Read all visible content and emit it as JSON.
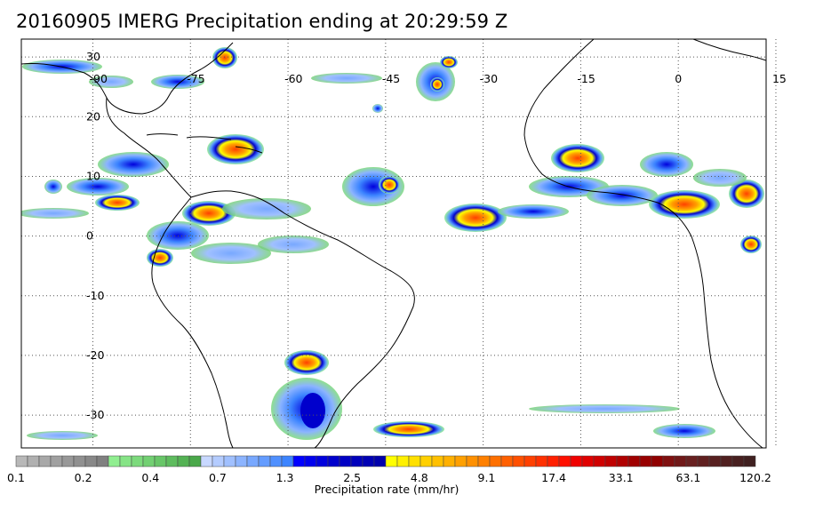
{
  "title": "20160905 IMERG Precipitation ending at 20:29:59 Z",
  "map": {
    "lon_range": [
      -101,
      13.5
    ],
    "lat_range": [
      -35.5,
      33
    ],
    "lon_ticks": [
      "-90",
      "-75",
      "-60",
      "-45",
      "-30",
      "-15",
      "0",
      "15"
    ],
    "lat_ticks": [
      "30",
      "20",
      "10",
      "0",
      "-10",
      "-20",
      "-30"
    ],
    "gridlines": "dotted",
    "coastlines": true
  },
  "colorbar": {
    "title": "Precipitation rate (mm/hr)",
    "tick_labels": [
      "0.1",
      "0.2",
      "0.4",
      "0.7",
      "1.3",
      "2.5",
      "4.8",
      "9.1",
      "17.4",
      "33.1",
      "63.1",
      "120.2"
    ],
    "colors": [
      "#b8b8b8",
      "#b0b0b0",
      "#a8a8a8",
      "#a0a0a0",
      "#989898",
      "#909090",
      "#888888",
      "#808080",
      "#90ee90",
      "#86e486",
      "#7cda7c",
      "#72d072",
      "#68c668",
      "#5ebc5e",
      "#54b254",
      "#4aa84a",
      "#c8d8ff",
      "#b4ccff",
      "#a0c0ff",
      "#8cb4ff",
      "#78a8ff",
      "#649cff",
      "#5090ff",
      "#3c84ff",
      "#0000ff",
      "#0000ee",
      "#0000dd",
      "#0000cc",
      "#0000c4",
      "#0000bc",
      "#0000b4",
      "#0000ac",
      "#ffff00",
      "#fff000",
      "#ffe000",
      "#ffd000",
      "#ffc000",
      "#ffb000",
      "#ffa000",
      "#ff9000",
      "#ff8000",
      "#ff7000",
      "#ff6000",
      "#ff5000",
      "#ff4000",
      "#ff3000",
      "#ff2000",
      "#ff1000",
      "#f00000",
      "#e00000",
      "#d00000",
      "#c00000",
      "#b00000",
      "#a00000",
      "#980000",
      "#900000",
      "#801010",
      "#701818",
      "#682020",
      "#602020",
      "#582020",
      "#502020",
      "#482020",
      "#402020"
    ]
  }
}
